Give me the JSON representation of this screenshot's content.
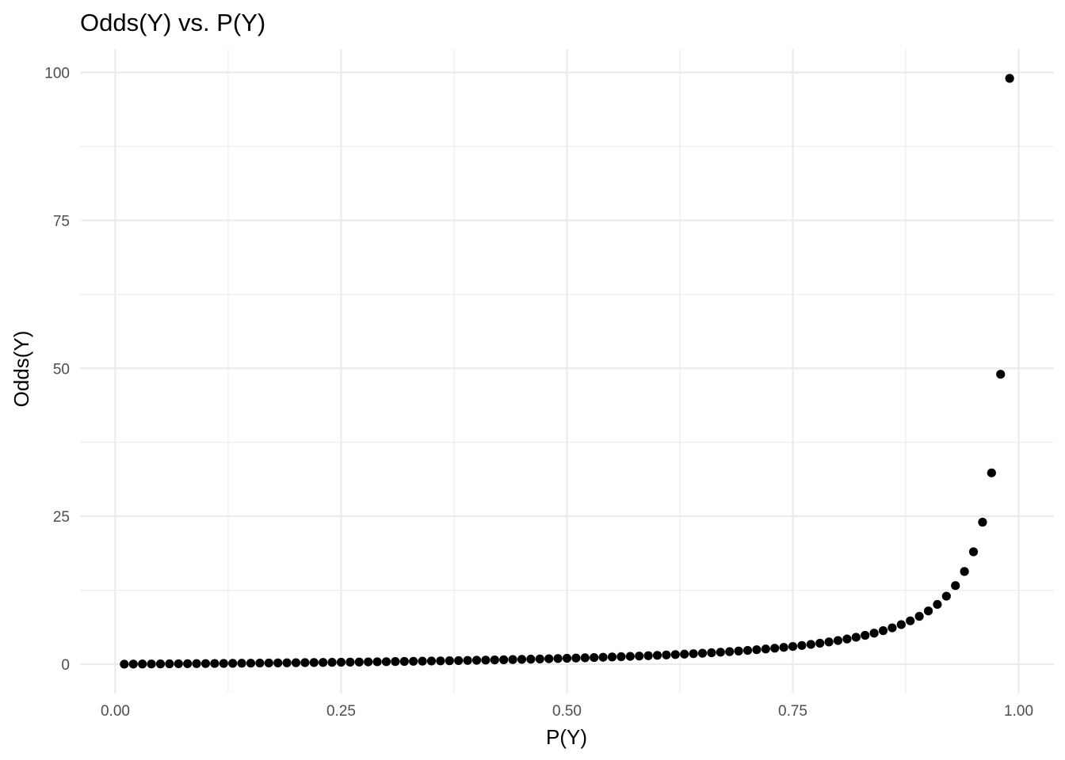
{
  "chart_data": {
    "type": "scatter",
    "title": "Odds(Y) vs. P(Y)",
    "xlabel": "P(Y)",
    "ylabel": "Odds(Y)",
    "xlim": [
      -0.039,
      1.039
    ],
    "ylim": [
      -4.95,
      103.95
    ],
    "x_ticks": [
      {
        "value": 0,
        "label": "0.00"
      },
      {
        "value": 0.25,
        "label": "0.25"
      },
      {
        "value": 0.5,
        "label": "0.50"
      },
      {
        "value": 0.75,
        "label": "0.75"
      },
      {
        "value": 1,
        "label": "1.00"
      }
    ],
    "x_minor_ticks": [
      0.125,
      0.375,
      0.625,
      0.875
    ],
    "y_ticks": [
      {
        "value": 0,
        "label": "0"
      },
      {
        "value": 25,
        "label": "25"
      },
      {
        "value": 50,
        "label": "50"
      },
      {
        "value": 75,
        "label": "75"
      },
      {
        "value": 100,
        "label": "100"
      }
    ],
    "y_minor_ticks": [
      12.5,
      37.5,
      62.5,
      87.5
    ],
    "grid": true,
    "legend": "none",
    "point_color": "#000000",
    "series": [
      {
        "x": [
          0.01,
          0.02,
          0.03,
          0.04,
          0.05,
          0.06,
          0.07,
          0.08,
          0.09,
          0.1,
          0.11,
          0.12,
          0.13,
          0.14,
          0.15,
          0.16,
          0.17,
          0.18,
          0.19,
          0.2,
          0.21,
          0.22,
          0.23,
          0.24,
          0.25,
          0.26,
          0.27,
          0.28,
          0.29,
          0.3,
          0.31,
          0.32,
          0.33,
          0.34,
          0.35,
          0.36,
          0.37,
          0.38,
          0.39,
          0.4,
          0.41,
          0.42,
          0.43,
          0.44,
          0.45,
          0.46,
          0.47,
          0.48,
          0.49,
          0.5,
          0.51,
          0.52,
          0.53,
          0.54,
          0.55,
          0.56,
          0.57,
          0.58,
          0.59,
          0.6,
          0.61,
          0.62,
          0.63,
          0.64,
          0.65,
          0.66,
          0.67,
          0.68,
          0.69,
          0.7,
          0.71,
          0.72,
          0.73,
          0.74,
          0.75,
          0.76,
          0.77,
          0.78,
          0.79,
          0.8,
          0.81,
          0.82,
          0.83,
          0.84,
          0.85,
          0.86,
          0.87,
          0.88,
          0.89,
          0.9,
          0.91,
          0.92,
          0.93,
          0.94,
          0.95,
          0.96,
          0.97,
          0.98,
          0.99
        ],
        "y": [
          0.0101,
          0.0204,
          0.0309,
          0.0417,
          0.0526,
          0.0638,
          0.0753,
          0.087,
          0.0989,
          0.1111,
          0.1236,
          0.1364,
          0.1494,
          0.1628,
          0.1765,
          0.1905,
          0.2048,
          0.2195,
          0.2346,
          0.25,
          0.2658,
          0.2821,
          0.2987,
          0.3158,
          0.3333,
          0.3514,
          0.3699,
          0.3889,
          0.4085,
          0.4286,
          0.4493,
          0.4706,
          0.4925,
          0.5152,
          0.5385,
          0.5625,
          0.5873,
          0.6129,
          0.6393,
          0.6667,
          0.6949,
          0.7241,
          0.7544,
          0.7857,
          0.8182,
          0.8519,
          0.8868,
          0.9231,
          0.9608,
          1.0,
          1.0408,
          1.0833,
          1.1277,
          1.1739,
          1.2222,
          1.2727,
          1.3256,
          1.381,
          1.439,
          1.5,
          1.5641,
          1.6316,
          1.7027,
          1.7778,
          1.8571,
          1.9412,
          2.0303,
          2.125,
          2.2258,
          2.3333,
          2.4483,
          2.5714,
          2.7037,
          2.8462,
          3.0,
          3.1667,
          3.3478,
          3.5455,
          3.7619,
          4.0,
          4.2632,
          4.5556,
          4.8824,
          5.25,
          5.6667,
          6.1429,
          6.6923,
          7.3333,
          8.0909,
          9.0,
          10.1111,
          11.5,
          13.2857,
          15.6667,
          19.0,
          24.0,
          32.3333,
          49.0,
          99.0
        ]
      }
    ]
  }
}
